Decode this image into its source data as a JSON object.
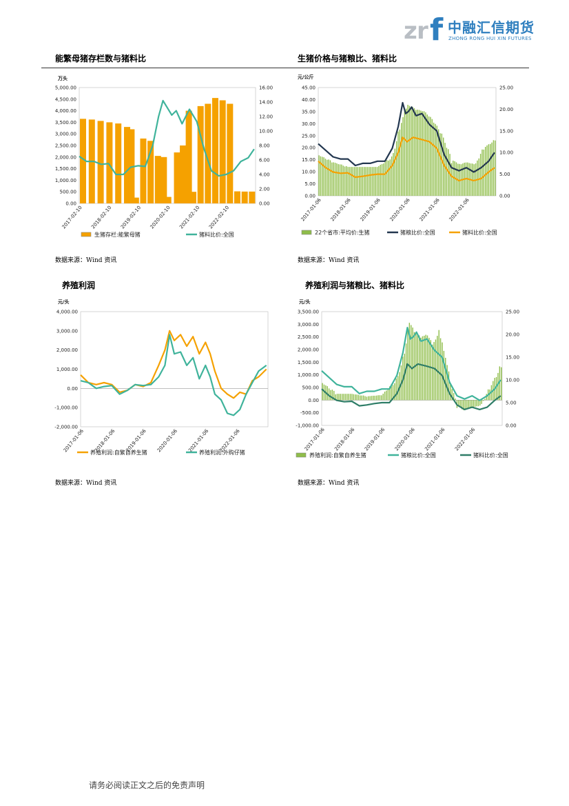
{
  "header": {
    "logo_cn": "中融汇信期货",
    "logo_en": "ZHONG RONG HUI XIN FUTURES",
    "logo_mark": "zrf"
  },
  "colors": {
    "orange": "#f5a100",
    "teal": "#3fb39b",
    "navy": "#22364f",
    "green": "#8fbd4a",
    "darkgreen": "#2e7d67"
  },
  "charts": [
    {
      "title": "能繁母猪存栏数与猪料比",
      "source": "数据来源：Wind 资讯",
      "chart_data": {
        "type": "bar+line",
        "unit_left": "万头",
        "left_ticks": [
          "5,000.00",
          "4,500.00",
          "4,000.00",
          "3,500.00",
          "3,000.00",
          "2,500.00",
          "2,000.00",
          "1,500.00",
          "1,000.00",
          "500.00",
          "0.00"
        ],
        "right_ticks": [
          "16.00",
          "14.00",
          "12.00",
          "10.00",
          "8.00",
          "6.00",
          "4.00",
          "2.00",
          "0.00"
        ],
        "ylim_left": [
          0,
          5000
        ],
        "ylim_right": [
          0,
          16
        ],
        "x_ticks": [
          "2017-02-10",
          "2018-02-10",
          "2019-02-10",
          "2020-02-10",
          "2021-02-10",
          "2022-02-10"
        ],
        "x_range": [
          2017.0,
          2023.0
        ],
        "legend": [
          "生猪存栏:能繁母猪",
          "猪料比价:全国"
        ],
        "bars": {
          "name": "生猪存栏:能繁母猪",
          "x": [
            2017.0,
            2017.3,
            2017.6,
            2017.9,
            2018.2,
            2018.5,
            2018.65,
            2018.8,
            2019.05,
            2019.3,
            2019.55,
            2019.75,
            2019.9,
            2020.2,
            2020.4,
            2020.6,
            2020.75,
            2021.0,
            2021.25,
            2021.5,
            2021.75,
            2022.0,
            2022.25,
            2022.5,
            2022.75
          ],
          "values": [
            3650,
            3620,
            3560,
            3500,
            3450,
            3300,
            3200,
            250,
            2800,
            2700,
            2050,
            2000,
            280,
            2200,
            2500,
            4000,
            500,
            4200,
            4300,
            4550,
            4450,
            4300,
            520,
            510,
            510
          ]
        },
        "series": [
          {
            "name": "猪料比价:全国",
            "x": [
              2017.0,
              2017.25,
              2017.5,
              2017.75,
              2018.0,
              2018.25,
              2018.5,
              2018.75,
              2019.0,
              2019.25,
              2019.5,
              2019.7,
              2019.85,
              2020.0,
              2020.15,
              2020.3,
              2020.5,
              2020.75,
              2021.0,
              2021.25,
              2021.5,
              2021.75,
              2022.0,
              2022.25,
              2022.5,
              2022.75,
              2022.95
            ],
            "values": [
              6.5,
              5.8,
              5.8,
              5.4,
              5.5,
              4.0,
              4.0,
              5.0,
              5.2,
              5.1,
              8.0,
              12.0,
              14.2,
              13.2,
              12.2,
              12.8,
              11.0,
              13.0,
              11.3,
              7.5,
              4.5,
              3.8,
              4.0,
              4.5,
              5.8,
              6.3,
              7.5
            ]
          }
        ]
      }
    },
    {
      "title": "生猪价格与猪粮比、猪料比",
      "source": "数据来源：Wind 资讯",
      "chart_data": {
        "type": "bar+line",
        "unit_left": "元/公斤",
        "left_ticks": [
          "45.00",
          "40.00",
          "35.00",
          "30.00",
          "25.00",
          "20.00",
          "15.00",
          "10.00",
          "5.00",
          "0.00"
        ],
        "right_ticks": [
          "25.00",
          "20.00",
          "15.00",
          "10.00",
          "5.00",
          "0.00"
        ],
        "ylim_left": [
          0,
          45
        ],
        "ylim_right": [
          0,
          25
        ],
        "x_ticks": [
          "2017-01-06",
          "2018-01-06",
          "2019-01-06",
          "2020-01-06",
          "2021-01-06",
          "2022-01-06"
        ],
        "x_range": [
          2017.0,
          2023.0
        ],
        "legend": [
          "22个省市:平均价:生猪",
          "猪粮比价:全国",
          "猪料比价:全国"
        ],
        "bars": {
          "name": "22个省市:平均价:生猪",
          "x": [
            2017.0,
            2017.5,
            2018.0,
            2018.5,
            2019.0,
            2019.5,
            2019.8,
            2020.0,
            2020.3,
            2020.6,
            2020.9,
            2021.2,
            2021.5,
            2021.8,
            2022.0,
            2022.3,
            2022.6,
            2022.95
          ],
          "values": [
            17,
            14,
            12,
            12,
            12,
            16,
            30,
            38,
            36,
            35,
            31,
            25,
            15,
            13,
            14,
            13,
            20,
            23
          ]
        },
        "series": [
          {
            "name": "猪粮比价:全国",
            "x": [
              2017.0,
              2017.25,
              2017.5,
              2017.75,
              2018.0,
              2018.25,
              2018.5,
              2018.75,
              2019.0,
              2019.25,
              2019.5,
              2019.7,
              2019.85,
              2019.95,
              2020.05,
              2020.15,
              2020.3,
              2020.5,
              2020.75,
              2021.0,
              2021.25,
              2021.5,
              2021.75,
              2022.0,
              2022.25,
              2022.5,
              2022.75,
              2022.95
            ],
            "values": [
              12.0,
              10.5,
              9.0,
              8.5,
              8.5,
              7.0,
              7.5,
              7.5,
              8.0,
              8.0,
              11.0,
              16.0,
              21.5,
              19.0,
              19.5,
              20.5,
              18.5,
              19.0,
              16.5,
              15.0,
              9.5,
              6.5,
              5.8,
              6.5,
              5.5,
              6.5,
              8.0,
              10.0
            ]
          },
          {
            "name": "猪料比价:全国",
            "x": [
              2017.0,
              2017.25,
              2017.5,
              2017.75,
              2018.0,
              2018.25,
              2018.5,
              2018.75,
              2019.0,
              2019.25,
              2019.5,
              2019.7,
              2019.85,
              2020.0,
              2020.2,
              2020.5,
              2020.75,
              2021.0,
              2021.25,
              2021.5,
              2021.75,
              2022.0,
              2022.25,
              2022.5,
              2022.75,
              2022.95
            ],
            "values": [
              8.0,
              6.5,
              5.5,
              5.2,
              5.3,
              4.3,
              4.5,
              4.8,
              5.0,
              5.0,
              7.0,
              10.0,
              13.5,
              12.5,
              13.5,
              13.0,
              12.5,
              11.0,
              7.0,
              4.5,
              3.5,
              4.0,
              3.5,
              4.0,
              5.5,
              6.5
            ]
          }
        ]
      }
    },
    {
      "title": "养殖利润",
      "source": "数据来源：Wind 资讯",
      "chart_data": {
        "type": "line",
        "unit_left": "元/头",
        "left_ticks": [
          "4,000.00",
          "3,000.00",
          "2,000.00",
          "1,000.00",
          "0.00",
          "-1,000.00",
          "-2,000.00"
        ],
        "ylim_left": [
          -2000,
          4000
        ],
        "x_ticks": [
          "2017-01-06",
          "2018-01-06",
          "2019-01-06",
          "2020-01-06",
          "2021-01-06",
          "2022-01-06"
        ],
        "x_range": [
          2017.0,
          2023.0
        ],
        "legend": [
          "养殖利润:自繁自养生猪",
          "养殖利润:外购仔猪"
        ],
        "series": [
          {
            "name": "养殖利润:自繁自养生猪",
            "x": [
              2017.0,
              2017.25,
              2017.5,
              2017.75,
              2018.0,
              2018.25,
              2018.5,
              2018.75,
              2019.0,
              2019.25,
              2019.5,
              2019.7,
              2019.85,
              2020.0,
              2020.2,
              2020.4,
              2020.6,
              2020.8,
              2021.0,
              2021.15,
              2021.3,
              2021.5,
              2021.7,
              2021.9,
              2022.1,
              2022.3,
              2022.5,
              2022.7,
              2022.95
            ],
            "values": [
              700,
              300,
              200,
              300,
              200,
              -200,
              -100,
              200,
              100,
              300,
              1200,
              2000,
              3000,
              2500,
              2800,
              2200,
              2700,
              1800,
              2400,
              1800,
              900,
              0,
              -300,
              -500,
              -200,
              -300,
              400,
              600,
              1000
            ]
          },
          {
            "name": "养殖利润:外购仔猪",
            "x": [
              2017.0,
              2017.25,
              2017.5,
              2017.75,
              2018.0,
              2018.25,
              2018.5,
              2018.75,
              2019.0,
              2019.25,
              2019.5,
              2019.7,
              2019.85,
              2020.0,
              2020.2,
              2020.4,
              2020.6,
              2020.8,
              2021.0,
              2021.15,
              2021.3,
              2021.5,
              2021.7,
              2021.9,
              2022.1,
              2022.3,
              2022.5,
              2022.7,
              2022.95
            ],
            "values": [
              400,
              300,
              0,
              100,
              150,
              -300,
              -100,
              200,
              150,
              200,
              600,
              1200,
              2800,
              1800,
              1900,
              1200,
              1600,
              500,
              1200,
              600,
              -300,
              -600,
              -1300,
              -1400,
              -1100,
              -300,
              300,
              900,
              1200
            ]
          }
        ]
      }
    },
    {
      "title": "养殖利润与猪粮比、猪料比",
      "source": "数据来源：Wind 资讯",
      "chart_data": {
        "type": "bar+line",
        "unit_left": "元/头",
        "left_ticks": [
          "3,500.00",
          "3,000.00",
          "2,500.00",
          "2,000.00",
          "1,500.00",
          "1,000.00",
          "500.00",
          "0.00",
          "-500.00",
          "-1,000.00"
        ],
        "right_ticks": [
          "25.00",
          "20.00",
          "15.00",
          "10.00",
          "5.00",
          "0.00"
        ],
        "ylim_left": [
          -1000,
          3500
        ],
        "ylim_right": [
          0,
          25
        ],
        "x_ticks": [
          "2017-01-06",
          "2018-01-06",
          "2019-01-06",
          "2020-01-06",
          "2021-01-06",
          "2022-01-06"
        ],
        "x_range": [
          2017.0,
          2023.0
        ],
        "legend": [
          "养殖利润:自繁自养生猪",
          "猪粮比价:全国",
          "猪料比价:全国"
        ],
        "bars": {
          "name": "养殖利润:自繁自养生猪",
          "x": [
            2017.0,
            2017.5,
            2018.0,
            2018.5,
            2019.0,
            2019.5,
            2019.75,
            2019.9,
            2020.1,
            2020.3,
            2020.5,
            2020.7,
            2020.9,
            2021.1,
            2021.3,
            2021.5,
            2021.7,
            2022.0,
            2022.3,
            2022.6,
            2022.95
          ],
          "values": [
            700,
            250,
            250,
            150,
            200,
            800,
            1800,
            3100,
            2700,
            2500,
            2600,
            2200,
            2700,
            1800,
            600,
            -200,
            -400,
            -300,
            -200,
            500,
            1300
          ]
        },
        "series": [
          {
            "name": "猪粮比价:全国",
            "x": [
              2017.0,
              2017.25,
              2017.5,
              2017.75,
              2018.0,
              2018.25,
              2018.5,
              2018.75,
              2019.0,
              2019.25,
              2019.5,
              2019.7,
              2019.85,
              2019.95,
              2020.05,
              2020.15,
              2020.3,
              2020.5,
              2020.75,
              2021.0,
              2021.25,
              2021.5,
              2021.75,
              2022.0,
              2022.25,
              2022.5,
              2022.75,
              2022.95
            ],
            "values": [
              12.0,
              10.5,
              9.0,
              8.5,
              8.5,
              7.0,
              7.5,
              7.5,
              8.0,
              8.0,
              11.0,
              16.0,
              21.5,
              19.0,
              19.5,
              20.5,
              18.5,
              19.0,
              16.5,
              15.0,
              9.5,
              6.5,
              5.8,
              6.5,
              5.5,
              6.5,
              8.0,
              10.0
            ]
          },
          {
            "name": "猪料比价:全国",
            "x": [
              2017.0,
              2017.25,
              2017.5,
              2017.75,
              2018.0,
              2018.25,
              2018.5,
              2018.75,
              2019.0,
              2019.25,
              2019.5,
              2019.7,
              2019.85,
              2020.0,
              2020.2,
              2020.5,
              2020.75,
              2021.0,
              2021.25,
              2021.5,
              2021.75,
              2022.0,
              2022.25,
              2022.5,
              2022.75,
              2022.95
            ],
            "values": [
              8.0,
              6.5,
              5.5,
              5.2,
              5.3,
              4.3,
              4.5,
              4.8,
              5.0,
              5.0,
              7.0,
              10.0,
              13.5,
              12.5,
              13.5,
              13.0,
              12.5,
              11.0,
              7.0,
              4.5,
              3.5,
              4.0,
              3.5,
              4.0,
              5.5,
              6.5
            ]
          }
        ]
      }
    }
  ],
  "footer": {
    "disclaimer": "请务必阅读正文之后的免责声明"
  }
}
